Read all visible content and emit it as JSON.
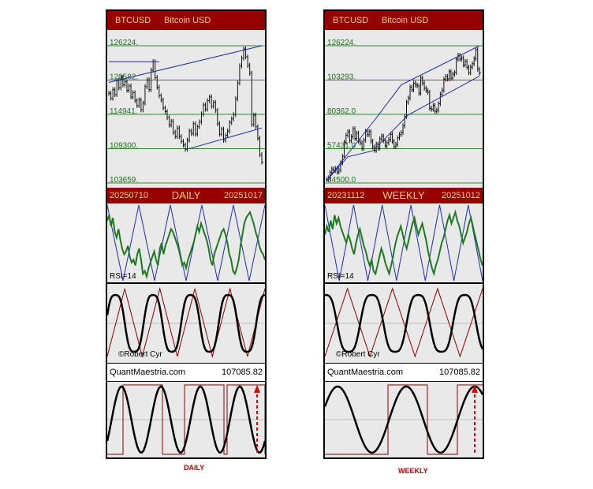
{
  "captions": {
    "daily": "DAILY",
    "weekly": "WEEKLY"
  },
  "colors": {
    "header_bg": "#960000",
    "header_text": "#f3d26c",
    "grid": "#2e8b2e",
    "channel": "#1f2fb0",
    "rsi": "#1f7a1f",
    "sawtooth": "#8b0000",
    "arrow": "#e00000",
    "background": "#e9e9e9"
  },
  "icons": {
    "up_arrow": "dashed-red-up-arrow"
  },
  "chart_data": [
    {
      "id": "daily",
      "type": "line",
      "symbol": "BTCUSD",
      "name": "Bitcoin USD",
      "timeframe": "DAILY",
      "date_start": "20250710",
      "date_end": "20251017",
      "price_levels": [
        "126224.",
        "120582.",
        "114941.",
        "109300.",
        "103659."
      ],
      "ylim": [
        103659,
        126224
      ],
      "closes": [
        118400,
        117600,
        119000,
        118200,
        120500,
        119300,
        121000,
        119800,
        120300,
        118900,
        119600,
        117800,
        118500,
        117200,
        116400,
        117300,
        115700,
        116800,
        119500,
        120600,
        119000,
        122200,
        123600,
        121000,
        119400,
        118000,
        117300,
        116000,
        115400,
        114400,
        113200,
        113800,
        112000,
        111300,
        112700,
        111300,
        110500,
        109900,
        109200,
        110700,
        112200,
        111800,
        113400,
        111700,
        112900,
        113700,
        115000,
        116500,
        115800,
        117200,
        117800,
        116300,
        116900,
        115600,
        113400,
        111700,
        112500,
        110700,
        111500,
        112200,
        113600,
        114200,
        114900,
        117500,
        120100,
        122900,
        124200,
        125700,
        124400,
        123000,
        121700,
        113300,
        114800,
        112900,
        111000,
        108300,
        107100
      ],
      "channel": {
        "upper": [
          [
            0,
            120200
          ],
          [
            76,
            126224
          ]
        ],
        "lower": [
          [
            40,
            109300
          ],
          [
            76,
            112700
          ]
        ],
        "top_line": [
          [
            0,
            123600
          ],
          [
            25,
            123600
          ]
        ]
      },
      "rsi": {
        "label": "RSI=14",
        "values": [
          68,
          72,
          64,
          70,
          60,
          56,
          62,
          54,
          48,
          44,
          46,
          50,
          42,
          38,
          40,
          36,
          44,
          48,
          40,
          30,
          32,
          28,
          34,
          38,
          42,
          46,
          40,
          36,
          48,
          52,
          44,
          50,
          54,
          58,
          62,
          60,
          56,
          52,
          48,
          42,
          36,
          38,
          34,
          40,
          44,
          48,
          52,
          58,
          64,
          60,
          66,
          62,
          58,
          54,
          48,
          40,
          36,
          44,
          48,
          52,
          56,
          60,
          62,
          58,
          52,
          44,
          40,
          32,
          30,
          34,
          40,
          50,
          58,
          66,
          70,
          72,
          74,
          70,
          66,
          60,
          56,
          50,
          46,
          44,
          40
        ]
      },
      "cycle": {
        "watermark": "©Robert Cyr"
      },
      "footer": {
        "brand": "QuantMaestria.com",
        "price": "107085.82"
      }
    },
    {
      "id": "weekly",
      "type": "line",
      "symbol": "BTCUSD",
      "name": "Bitcoin USD",
      "timeframe": "WEEKLY",
      "date_start": "20231112",
      "date_end": "20251012",
      "price_levels": [
        "126224.",
        "103293.",
        "80362.0",
        "57431.0",
        "34500.0"
      ],
      "ylim": [
        34500,
        126224
      ],
      "closes": [
        36800,
        37900,
        41500,
        43800,
        42900,
        44100,
        41800,
        43200,
        48000,
        52300,
        61800,
        66400,
        68700,
        62800,
        65400,
        70700,
        64200,
        67800,
        62400,
        61300,
        57600,
        63200,
        69000,
        66800,
        68800,
        62400,
        58600,
        56400,
        60500,
        57800,
        64000,
        65800,
        62700,
        59400,
        61400,
        63500,
        67000,
        62300,
        58900,
        60300,
        64700,
        66800,
        68200,
        72700,
        79000,
        88400,
        91300,
        98600,
        96800,
        101200,
        100000,
        99400,
        94500,
        104600,
        101300,
        97800,
        96300,
        95100,
        84400,
        83800,
        86400,
        82400,
        83100,
        87500,
        93800,
        96500,
        103800,
        105600,
        104100,
        108900,
        104600,
        107200,
        108400,
        117200,
        119800,
        117300,
        118100,
        113400,
        115700,
        111800,
        108200,
        112000,
        114200,
        117600,
        123500,
        110500,
        108000
      ]
    },
    {
      "id": "weekly-indicators",
      "rsi": {
        "label": "RSI=14",
        "values": [
          58,
          64,
          60,
          68,
          62,
          72,
          66,
          70,
          64,
          60,
          56,
          52,
          58,
          54,
          48,
          44,
          52,
          58,
          62,
          56,
          50,
          46,
          40,
          36,
          40,
          32,
          30,
          36,
          42,
          48,
          44,
          38,
          34,
          30,
          36,
          42,
          50,
          56,
          60,
          64,
          58,
          52,
          48,
          54,
          60,
          66,
          70,
          64,
          58,
          62,
          66,
          60,
          54,
          46,
          40,
          34,
          30,
          36,
          40,
          46,
          52,
          56,
          62,
          68,
          72,
          66,
          70,
          74,
          68,
          64,
          58,
          52,
          56,
          60,
          66,
          70,
          64,
          58,
          52,
          46,
          40,
          36
        ]
      },
      "cycle": {
        "watermark": "©Robert Cyr"
      },
      "footer": {
        "brand": "QuantMaestria.com",
        "price": "107085.82"
      }
    }
  ]
}
